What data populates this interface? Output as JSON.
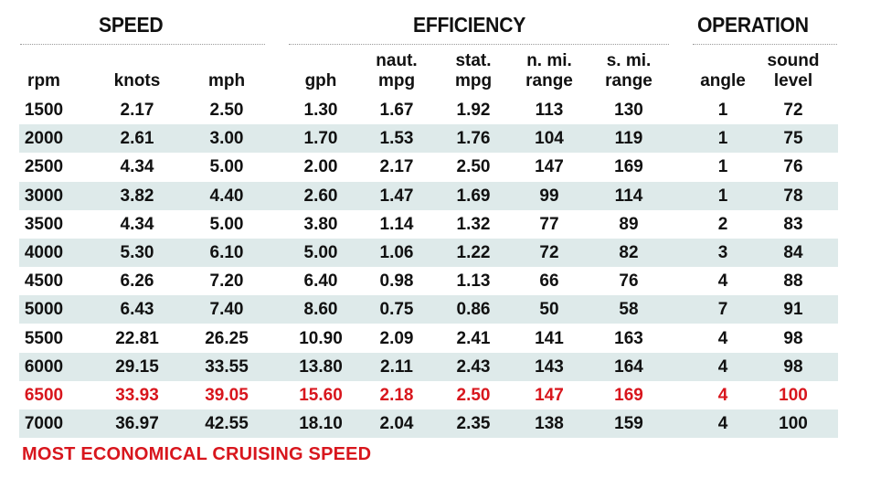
{
  "groups": {
    "speed": "SPEED",
    "efficiency": "EFFICIENCY",
    "operation": "OPERATION"
  },
  "columns": [
    {
      "line1": "",
      "line2": "rpm"
    },
    {
      "line1": "",
      "line2": "knots"
    },
    {
      "line1": "",
      "line2": "mph"
    },
    {
      "line1": "",
      "line2": "gph"
    },
    {
      "line1": "naut.",
      "line2": "mpg"
    },
    {
      "line1": "stat.",
      "line2": "mpg"
    },
    {
      "line1": "n. mi.",
      "line2": "range"
    },
    {
      "line1": "s. mi.",
      "line2": "range"
    },
    {
      "line1": "",
      "line2": "angle"
    },
    {
      "line1": "sound",
      "line2": "level"
    }
  ],
  "rows": [
    [
      "1500",
      "2.17",
      "2.50",
      "1.30",
      "1.67",
      "1.92",
      "113",
      "130",
      "1",
      "72"
    ],
    [
      "2000",
      "2.61",
      "3.00",
      "1.70",
      "1.53",
      "1.76",
      "104",
      "119",
      "1",
      "75"
    ],
    [
      "2500",
      "4.34",
      "5.00",
      "2.00",
      "2.17",
      "2.50",
      "147",
      "169",
      "1",
      "76"
    ],
    [
      "3000",
      "3.82",
      "4.40",
      "2.60",
      "1.47",
      "1.69",
      "99",
      "114",
      "1",
      "78"
    ],
    [
      "3500",
      "4.34",
      "5.00",
      "3.80",
      "1.14",
      "1.32",
      "77",
      "89",
      "2",
      "83"
    ],
    [
      "4000",
      "5.30",
      "6.10",
      "5.00",
      "1.06",
      "1.22",
      "72",
      "82",
      "3",
      "84"
    ],
    [
      "4500",
      "6.26",
      "7.20",
      "6.40",
      "0.98",
      "1.13",
      "66",
      "76",
      "4",
      "88"
    ],
    [
      "5000",
      "6.43",
      "7.40",
      "8.60",
      "0.75",
      "0.86",
      "50",
      "58",
      "7",
      "91"
    ],
    [
      "5500",
      "22.81",
      "26.25",
      "10.90",
      "2.09",
      "2.41",
      "141",
      "163",
      "4",
      "98"
    ],
    [
      "6000",
      "29.15",
      "33.55",
      "13.80",
      "2.11",
      "2.43",
      "143",
      "164",
      "4",
      "98"
    ],
    [
      "6500",
      "33.93",
      "39.05",
      "15.60",
      "2.18",
      "2.50",
      "147",
      "169",
      "4",
      "100"
    ],
    [
      "7000",
      "36.97",
      "42.55",
      "18.10",
      "2.04",
      "2.35",
      "138",
      "159",
      "4",
      "100"
    ]
  ],
  "highlight_row": 10,
  "colors": {
    "highlight": "#d8161d",
    "row_shade": "#deeaea"
  },
  "footnote": "MOST ECONOMICAL CRUISING SPEED"
}
